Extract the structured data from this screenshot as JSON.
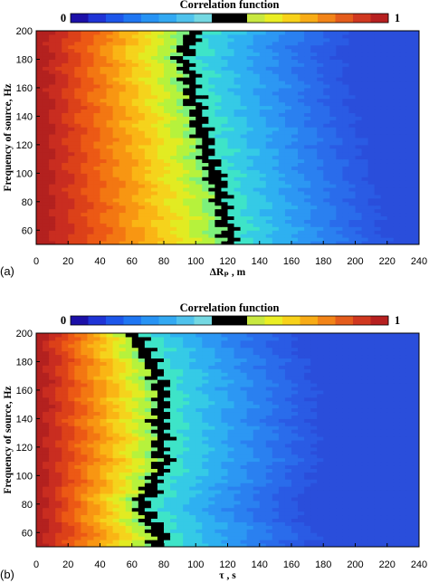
{
  "chart_data": [
    {
      "type": "heatmap",
      "panel_label": "(a)",
      "colorbar_title": "Correlation function",
      "colorbar_min_label": "0",
      "colorbar_max_label": "1",
      "xlabel": "ΔRₚ , m",
      "ylabel": "Frequency of source, Hz",
      "xlim": [
        0,
        240
      ],
      "ylim": [
        50,
        200
      ],
      "x_ticks": [
        "0",
        "20",
        "40",
        "60",
        "80",
        "100",
        "120",
        "140",
        "160",
        "180",
        "200",
        "220",
        "240"
      ],
      "y_ticks": [
        "60",
        "80",
        "100",
        "120",
        "140",
        "160",
        "180",
        "200"
      ],
      "x_ticks_values": [
        0,
        20,
        40,
        60,
        80,
        100,
        120,
        140,
        160,
        180,
        200,
        220,
        240
      ],
      "y_ticks_values": [
        60,
        80,
        100,
        120,
        140,
        160,
        180,
        200
      ],
      "black_contour_x": [
        {
          "f": 200,
          "x": 100
        },
        {
          "f": 190,
          "x": 94
        },
        {
          "f": 180,
          "x": 92
        },
        {
          "f": 170,
          "x": 96
        },
        {
          "f": 160,
          "x": 98
        },
        {
          "f": 150,
          "x": 99
        },
        {
          "f": 140,
          "x": 102
        },
        {
          "f": 130,
          "x": 104
        },
        {
          "f": 120,
          "x": 107
        },
        {
          "f": 110,
          "x": 108
        },
        {
          "f": 100,
          "x": 112
        },
        {
          "f": 90,
          "x": 114
        },
        {
          "f": 80,
          "x": 116
        },
        {
          "f": 70,
          "x": 118
        },
        {
          "f": 60,
          "x": 120
        },
        {
          "f": 50,
          "x": 121
        }
      ]
    },
    {
      "type": "heatmap",
      "panel_label": "(b)",
      "colorbar_title": "Correlation function",
      "colorbar_min_label": "0",
      "colorbar_max_label": "1",
      "xlabel": "τ , s",
      "ylabel": "Frequency of source, Hz",
      "xlim": [
        0,
        240
      ],
      "ylim": [
        50,
        200
      ],
      "x_ticks": [
        "0",
        "20",
        "40",
        "60",
        "80",
        "100",
        "120",
        "140",
        "160",
        "180",
        "200",
        "220",
        "240"
      ],
      "y_ticks": [
        "60",
        "80",
        "100",
        "120",
        "140",
        "160",
        "180",
        "200"
      ],
      "x_ticks_values": [
        0,
        20,
        40,
        60,
        80,
        100,
        120,
        140,
        160,
        180,
        200,
        220,
        240
      ],
      "y_ticks_values": [
        60,
        80,
        100,
        120,
        140,
        160,
        180,
        200
      ],
      "black_contour_x": [
        {
          "f": 200,
          "x": 62
        },
        {
          "f": 190,
          "x": 66
        },
        {
          "f": 180,
          "x": 72
        },
        {
          "f": 170,
          "x": 76
        },
        {
          "f": 160,
          "x": 78
        },
        {
          "f": 150,
          "x": 80
        },
        {
          "f": 140,
          "x": 76
        },
        {
          "f": 130,
          "x": 80
        },
        {
          "f": 120,
          "x": 78
        },
        {
          "f": 110,
          "x": 80
        },
        {
          "f": 100,
          "x": 76
        },
        {
          "f": 90,
          "x": 72
        },
        {
          "f": 80,
          "x": 66
        },
        {
          "f": 70,
          "x": 70
        },
        {
          "f": 60,
          "x": 78
        },
        {
          "f": 50,
          "x": 76
        }
      ]
    }
  ]
}
